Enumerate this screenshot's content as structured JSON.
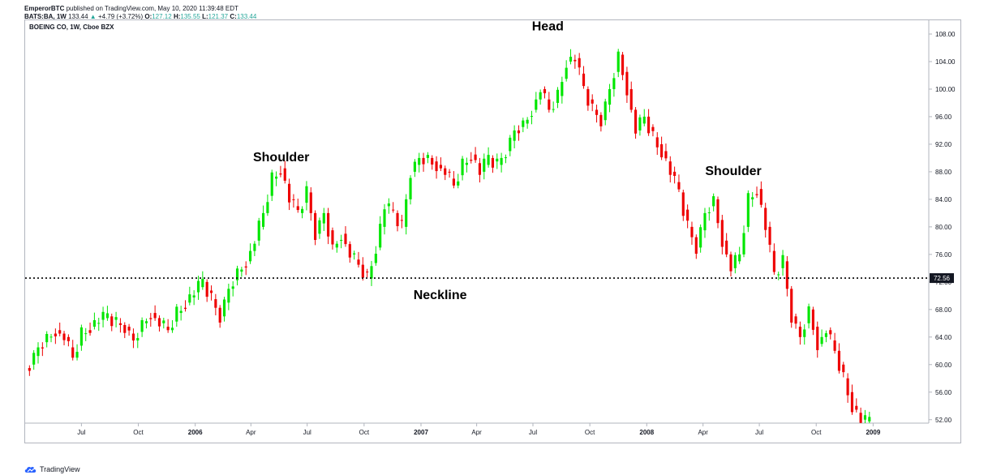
{
  "header": {
    "author": "EmperorBTC",
    "published": "published on TradingView.com, May 10, 2020 11:39:48 EDT",
    "symbol": "BATS:BA, 1W",
    "last": "133.44",
    "change_arrow": "▲",
    "change": "+4.79 (+3.72%)",
    "o_label": "O:",
    "o_value": "127.12",
    "h_label": "H:",
    "h_value": "135.55",
    "l_label": "L:",
    "l_value": "121.37",
    "c_label": "C:",
    "c_value": "133.44"
  },
  "symbol_label": "BOEING CO, 1W, Cboe BZX",
  "footer": {
    "brand": "TradingView",
    "logo_icon": "tradingview-cloud-icon"
  },
  "colors": {
    "up": "#00e600",
    "down": "#ee0000",
    "axis": "#b2b5be",
    "text": "#131722",
    "price_tag": "#131722"
  },
  "chart_data": {
    "type": "candlestick",
    "title": "BOEING CO, 1W, Cboe BZX",
    "ylim": [
      51.5,
      110
    ],
    "y_ticks": [
      "52.00",
      "56.00",
      "60.00",
      "64.00",
      "68.00",
      "72.00",
      "76.00",
      "80.00",
      "84.00",
      "88.00",
      "92.00",
      "96.00",
      "100.00",
      "104.00",
      "108.00"
    ],
    "y_tick_values": [
      52,
      56,
      60,
      64,
      68,
      72,
      76,
      80,
      84,
      88,
      92,
      96,
      100,
      104,
      108
    ],
    "x_range": [
      "2005-04-01",
      "2009-04-01"
    ],
    "x_ticks": [
      {
        "label": "Jul",
        "date": "2005-07-01",
        "bold": false
      },
      {
        "label": "Oct",
        "date": "2005-10-01",
        "bold": false
      },
      {
        "label": "2006",
        "date": "2006-01-01",
        "bold": true
      },
      {
        "label": "Apr",
        "date": "2006-04-01",
        "bold": false
      },
      {
        "label": "Jul",
        "date": "2006-07-01",
        "bold": false
      },
      {
        "label": "Oct",
        "date": "2006-10-01",
        "bold": false
      },
      {
        "label": "2007",
        "date": "2007-01-01",
        "bold": true
      },
      {
        "label": "Apr",
        "date": "2007-04-01",
        "bold": false
      },
      {
        "label": "Jul",
        "date": "2007-07-01",
        "bold": false
      },
      {
        "label": "Oct",
        "date": "2007-10-01",
        "bold": false
      },
      {
        "label": "2008",
        "date": "2008-01-01",
        "bold": true
      },
      {
        "label": "Apr",
        "date": "2008-04-01",
        "bold": false
      },
      {
        "label": "Jul",
        "date": "2008-07-01",
        "bold": false
      },
      {
        "label": "Oct",
        "date": "2008-10-01",
        "bold": false
      },
      {
        "label": "2009",
        "date": "2009-01-01",
        "bold": true
      }
    ],
    "price_line": {
      "value": 72.56,
      "label": "72.56"
    },
    "annotations": [
      {
        "text": "Shoulder",
        "date": "2006-05-20",
        "price": 89.5
      },
      {
        "text": "Head",
        "date": "2007-07-25",
        "price": 108.5
      },
      {
        "text": "Shoulder",
        "date": "2008-05-20",
        "price": 87.5
      },
      {
        "text": "Neckline",
        "date": "2007-02-01",
        "price": 69.5
      }
    ],
    "closes": [
      {
        "d": "2005-04-08",
        "c": 60
      },
      {
        "d": "2005-04-22",
        "c": 62.5
      },
      {
        "d": "2005-05-06",
        "c": 64
      },
      {
        "d": "2005-05-20",
        "c": 65
      },
      {
        "d": "2005-06-03",
        "c": 64
      },
      {
        "d": "2005-06-17",
        "c": 61
      },
      {
        "d": "2005-07-01",
        "c": 64.5
      },
      {
        "d": "2005-07-15",
        "c": 65.5
      },
      {
        "d": "2005-07-29",
        "c": 66.5
      },
      {
        "d": "2005-08-12",
        "c": 67
      },
      {
        "d": "2005-08-26",
        "c": 66
      },
      {
        "d": "2005-09-09",
        "c": 65.5
      },
      {
        "d": "2005-09-23",
        "c": 63.5
      },
      {
        "d": "2005-10-07",
        "c": 66
      },
      {
        "d": "2005-10-21",
        "c": 67.5
      },
      {
        "d": "2005-11-04",
        "c": 66
      },
      {
        "d": "2005-11-18",
        "c": 65
      },
      {
        "d": "2005-12-02",
        "c": 67.5
      },
      {
        "d": "2005-12-16",
        "c": 69
      },
      {
        "d": "2005-12-30",
        "c": 70.5
      },
      {
        "d": "2006-01-13",
        "c": 72
      },
      {
        "d": "2006-01-27",
        "c": 69.5
      },
      {
        "d": "2006-02-10",
        "c": 67
      },
      {
        "d": "2006-02-24",
        "c": 71
      },
      {
        "d": "2006-03-10",
        "c": 73.5
      },
      {
        "d": "2006-03-24",
        "c": 75
      },
      {
        "d": "2006-04-07",
        "c": 78
      },
      {
        "d": "2006-04-21",
        "c": 82
      },
      {
        "d": "2006-05-05",
        "c": 87
      },
      {
        "d": "2006-05-19",
        "c": 88.5
      },
      {
        "d": "2006-06-02",
        "c": 84
      },
      {
        "d": "2006-06-16",
        "c": 82
      },
      {
        "d": "2006-06-30",
        "c": 85
      },
      {
        "d": "2006-07-14",
        "c": 79
      },
      {
        "d": "2006-07-28",
        "c": 82
      },
      {
        "d": "2006-08-11",
        "c": 77
      },
      {
        "d": "2006-08-25",
        "c": 79
      },
      {
        "d": "2006-09-08",
        "c": 76
      },
      {
        "d": "2006-09-22",
        "c": 74.5
      },
      {
        "d": "2006-10-06",
        "c": 72.5
      },
      {
        "d": "2006-10-20",
        "c": 77
      },
      {
        "d": "2006-11-03",
        "c": 83
      },
      {
        "d": "2006-11-17",
        "c": 82
      },
      {
        "d": "2006-12-01",
        "c": 80
      },
      {
        "d": "2006-12-15",
        "c": 88
      },
      {
        "d": "2006-12-29",
        "c": 90
      },
      {
        "d": "2007-01-12",
        "c": 90
      },
      {
        "d": "2007-01-26",
        "c": 89
      },
      {
        "d": "2007-02-09",
        "c": 88
      },
      {
        "d": "2007-02-23",
        "c": 86
      },
      {
        "d": "2007-03-09",
        "c": 89
      },
      {
        "d": "2007-03-23",
        "c": 90.5
      },
      {
        "d": "2007-04-06",
        "c": 88
      },
      {
        "d": "2007-04-20",
        "c": 90
      },
      {
        "d": "2007-05-04",
        "c": 89
      },
      {
        "d": "2007-05-18",
        "c": 91
      },
      {
        "d": "2007-06-01",
        "c": 94
      },
      {
        "d": "2007-06-15",
        "c": 95
      },
      {
        "d": "2007-06-29",
        "c": 97
      },
      {
        "d": "2007-07-13",
        "c": 100
      },
      {
        "d": "2007-07-27",
        "c": 97
      },
      {
        "d": "2007-08-10",
        "c": 99
      },
      {
        "d": "2007-08-24",
        "c": 104
      },
      {
        "d": "2007-09-07",
        "c": 104.5
      },
      {
        "d": "2007-09-21",
        "c": 100
      },
      {
        "d": "2007-10-05",
        "c": 97
      },
      {
        "d": "2007-10-19",
        "c": 95.5
      },
      {
        "d": "2007-11-02",
        "c": 100
      },
      {
        "d": "2007-11-16",
        "c": 105
      },
      {
        "d": "2007-11-30",
        "c": 100
      },
      {
        "d": "2007-12-14",
        "c": 94
      },
      {
        "d": "2007-12-28",
        "c": 96
      },
      {
        "d": "2008-01-11",
        "c": 93
      },
      {
        "d": "2008-01-25",
        "c": 91
      },
      {
        "d": "2008-02-08",
        "c": 88
      },
      {
        "d": "2008-02-22",
        "c": 85
      },
      {
        "d": "2008-03-07",
        "c": 80
      },
      {
        "d": "2008-03-21",
        "c": 77
      },
      {
        "d": "2008-04-04",
        "c": 82
      },
      {
        "d": "2008-04-18",
        "c": 84
      },
      {
        "d": "2008-05-02",
        "c": 78
      },
      {
        "d": "2008-05-16",
        "c": 74
      },
      {
        "d": "2008-05-30",
        "c": 76
      },
      {
        "d": "2008-06-13",
        "c": 84
      },
      {
        "d": "2008-06-27",
        "c": 85.5
      },
      {
        "d": "2008-07-11",
        "c": 80
      },
      {
        "d": "2008-07-25",
        "c": 73
      },
      {
        "d": "2008-08-08",
        "c": 75
      },
      {
        "d": "2008-08-22",
        "c": 67
      },
      {
        "d": "2008-09-05",
        "c": 64
      },
      {
        "d": "2008-09-19",
        "c": 68
      },
      {
        "d": "2008-10-03",
        "c": 63
      },
      {
        "d": "2008-10-17",
        "c": 65
      },
      {
        "d": "2008-10-31",
        "c": 62
      },
      {
        "d": "2008-11-14",
        "c": 58
      },
      {
        "d": "2008-11-28",
        "c": 54
      },
      {
        "d": "2008-12-12",
        "c": 52
      },
      {
        "d": "2008-12-26",
        "c": 51.5
      }
    ]
  }
}
